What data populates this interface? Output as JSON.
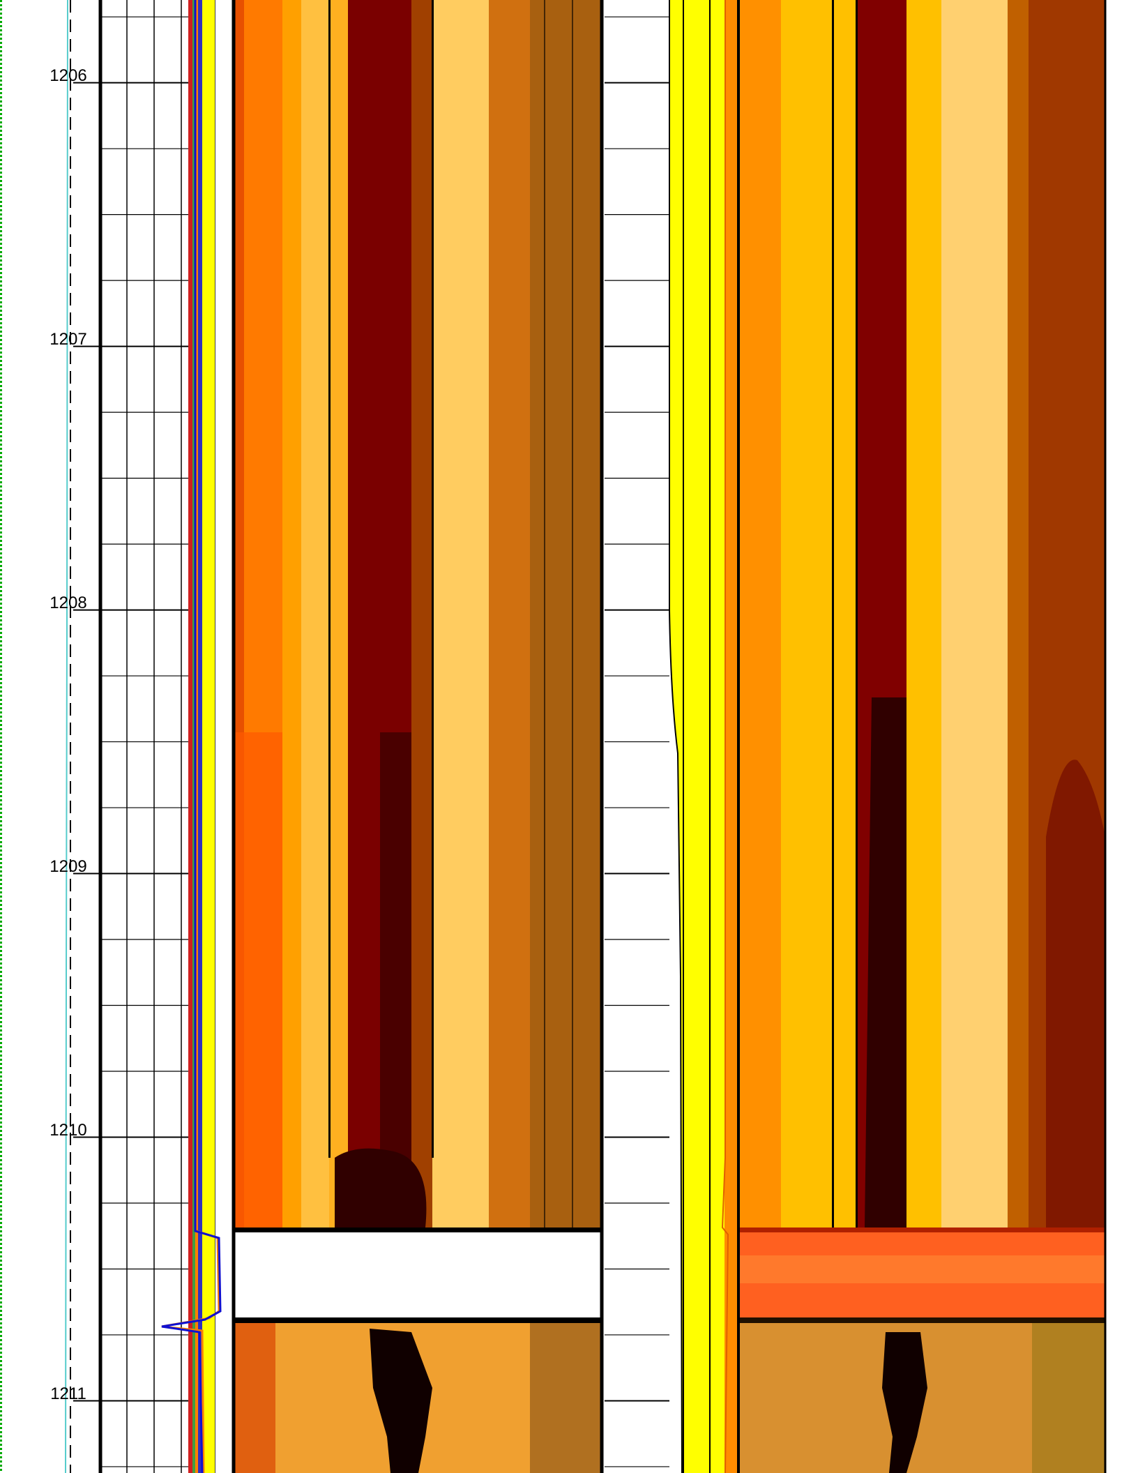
{
  "chart_data": {
    "type": "well-log",
    "ylim": [
      1205.686,
      1211.274
    ],
    "yticks": [
      1206,
      1207,
      1208,
      1209,
      1210,
      1211
    ],
    "grid": true
  }
}
